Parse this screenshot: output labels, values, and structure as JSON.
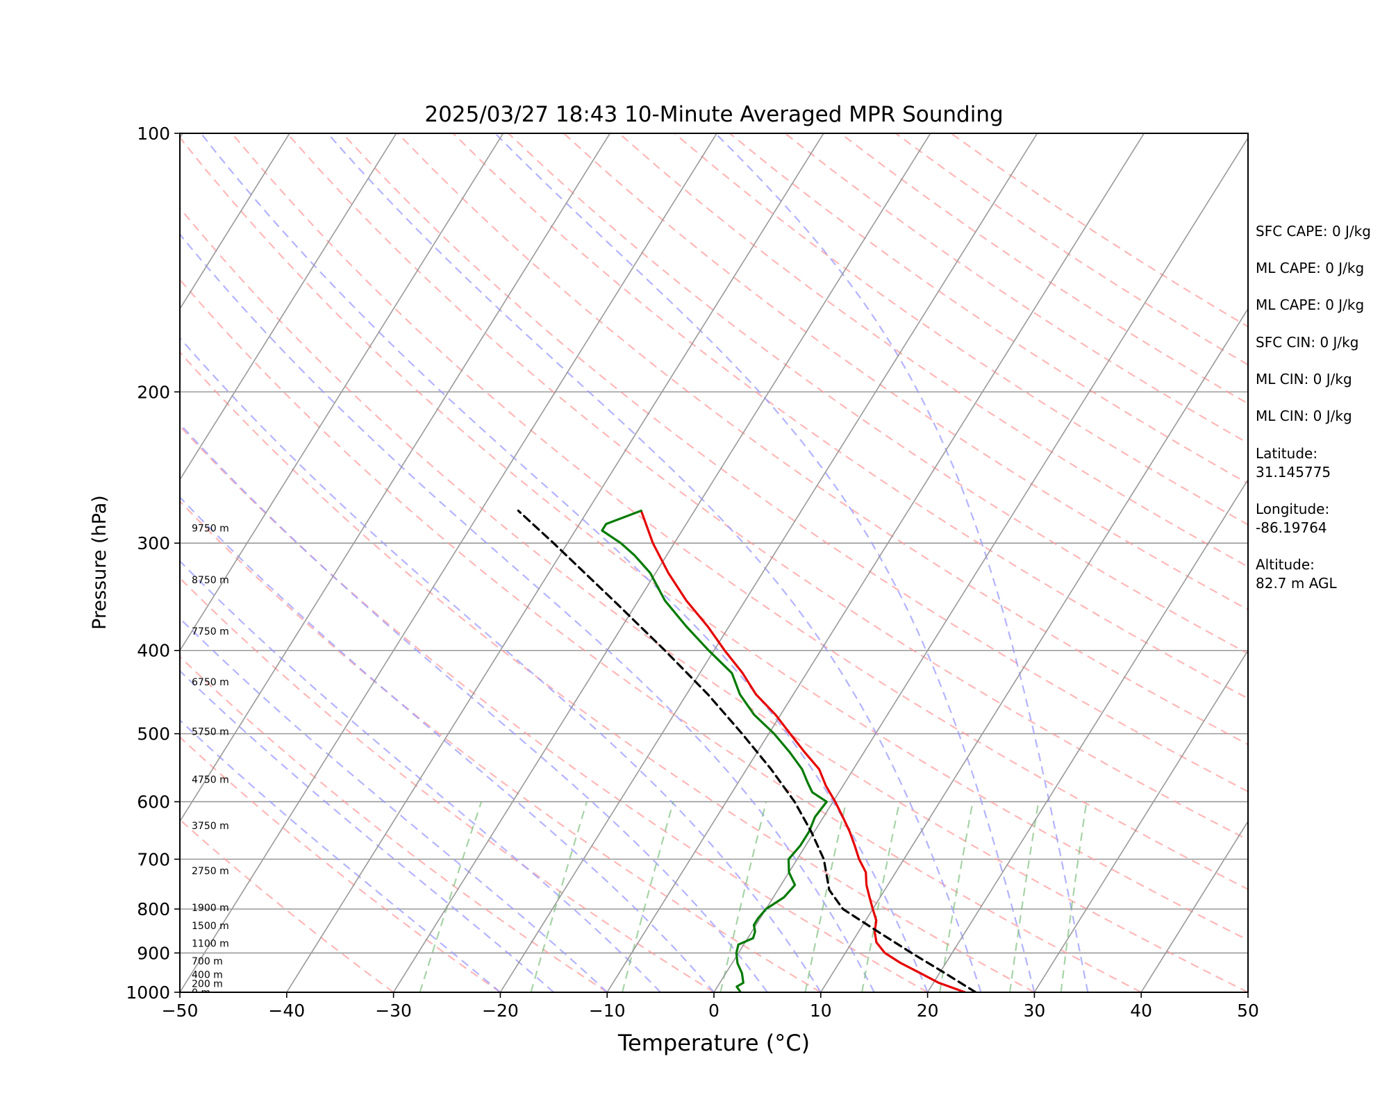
{
  "chart_data": {
    "type": "line",
    "title": "2025/03/27 18:43 10-Minute Averaged MPR Sounding",
    "xlabel": "Temperature (°C)",
    "ylabel": "Pressure (hPa)",
    "xlim": [
      -50,
      50
    ],
    "ylim": [
      1000,
      100
    ],
    "y_scale": "log",
    "skew": "skew-T",
    "grid": true,
    "x_ticks": [
      -50,
      -40,
      -30,
      -20,
      -10,
      0,
      10,
      20,
      30,
      40,
      50
    ],
    "y_ticks": [
      100,
      200,
      300,
      400,
      500,
      600,
      700,
      800,
      900,
      1000
    ],
    "colors": {
      "temperature": "#e60000",
      "dewpoint": "#007a00",
      "parcel": "#000000",
      "dry_adiabats": "#ff9999",
      "moist_adiabats": "#9999ff",
      "mixing_ratio": "#77bb77",
      "isotherms": "#999999"
    },
    "series": [
      {
        "key": "temperature",
        "pressure": [
          1000,
          975,
          950,
          925,
          900,
          875,
          850,
          825,
          800,
          775,
          750,
          725,
          700,
          675,
          650,
          625,
          600,
          575,
          550,
          525,
          500,
          475,
          450,
          425,
          400,
          375,
          350,
          325,
          300,
          275
        ],
        "values": [
          23.5,
          20.5,
          18.2,
          15.8,
          13.7,
          12.3,
          11.5,
          11.0,
          10.0,
          9.0,
          8.0,
          7.2,
          5.8,
          4.6,
          3.3,
          1.8,
          0.2,
          -1.6,
          -3.2,
          -5.6,
          -8.0,
          -10.5,
          -13.5,
          -16.0,
          -19.0,
          -22.0,
          -25.5,
          -28.8,
          -32.0,
          -35.0
        ]
      },
      {
        "key": "dewpoint",
        "pressure": [
          1000,
          985,
          975,
          950,
          925,
          900,
          880,
          865,
          850,
          835,
          820,
          800,
          775,
          750,
          725,
          700,
          675,
          650,
          625,
          600,
          585,
          570,
          550,
          525,
          500,
          475,
          450,
          425,
          400,
          375,
          350,
          325,
          310,
          300,
          290,
          285,
          275
        ],
        "values": [
          2.5,
          1.8,
          2.2,
          1.5,
          0.5,
          -0.2,
          -0.5,
          0.5,
          0.3,
          -0.2,
          -0.2,
          0.0,
          1.0,
          1.3,
          0.0,
          -0.8,
          -0.5,
          -0.5,
          -0.8,
          -0.6,
          -2.5,
          -3.5,
          -4.8,
          -7.0,
          -9.5,
          -12.5,
          -15.0,
          -17.0,
          -20.5,
          -24.0,
          -27.5,
          -30.5,
          -33.0,
          -35.0,
          -37.5,
          -37.5,
          -35.0
        ]
      },
      {
        "key": "parcel",
        "pressure": [
          1000,
          950,
          900,
          850,
          800,
          760,
          700,
          650,
          600,
          550,
          500,
          450,
          400,
          350,
          300,
          275
        ],
        "values": [
          24.5,
          20.5,
          16.2,
          11.8,
          7.2,
          4.8,
          2.5,
          -0.3,
          -3.6,
          -7.7,
          -12.5,
          -18.0,
          -24.6,
          -32.3,
          -41.3,
          -46.5
        ]
      }
    ],
    "height_labels": [
      {
        "text": "0 m",
        "pressure": 1000
      },
      {
        "text": "200 m",
        "pressure": 977
      },
      {
        "text": "400 m",
        "pressure": 954
      },
      {
        "text": "700 m",
        "pressure": 920
      },
      {
        "text": "1100 m",
        "pressure": 877
      },
      {
        "text": "1500 m",
        "pressure": 836
      },
      {
        "text": "1900 m",
        "pressure": 797
      },
      {
        "text": "2750 m",
        "pressure": 722
      },
      {
        "text": "3750 m",
        "pressure": 640
      },
      {
        "text": "4750 m",
        "pressure": 565
      },
      {
        "text": "5750 m",
        "pressure": 497
      },
      {
        "text": "6750 m",
        "pressure": 435
      },
      {
        "text": "7750 m",
        "pressure": 380
      },
      {
        "text": "8750 m",
        "pressure": 331
      },
      {
        "text": "9750 m",
        "pressure": 288
      }
    ]
  },
  "stats": {
    "sfc_cape": "SFC CAPE: 0 J/kg",
    "ml_cape_1": "ML CAPE: 0 J/kg",
    "ml_cape_2": "ML CAPE: 0 J/kg",
    "sfc_cin": "SFC CIN: 0 J/kg",
    "ml_cin_1": "ML CIN: 0 J/kg",
    "ml_cin_2": "ML CIN: 0 J/kg",
    "latitude_label": "Latitude:",
    "latitude_value": "31.145775",
    "longitude_label": "Longitude:",
    "longitude_value": "-86.19764",
    "altitude_label": "Altitude:",
    "altitude_value": "82.7 m AGL"
  }
}
